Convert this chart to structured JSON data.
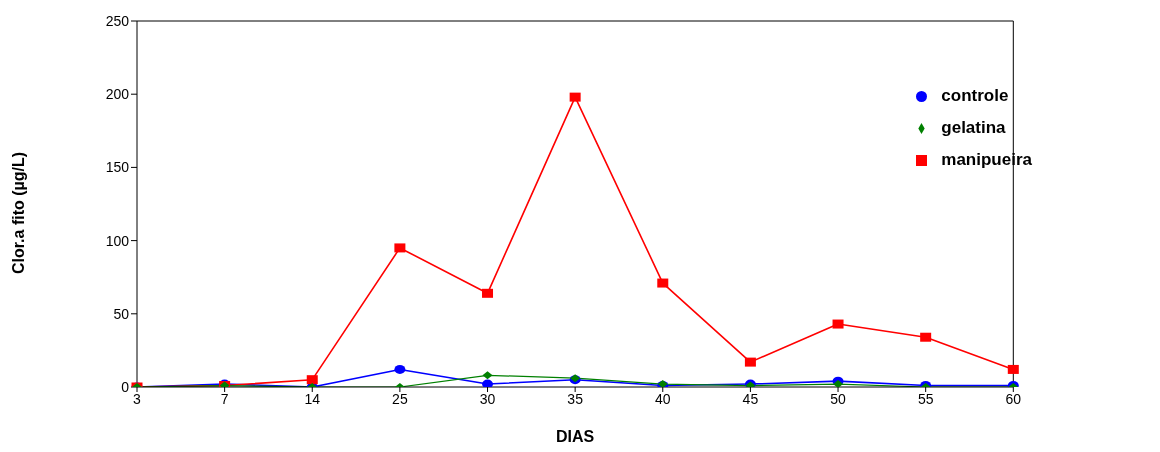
{
  "chart_data": {
    "type": "line",
    "xlabel": "DIAS",
    "ylabel": "Clor.a fito (µg/L)",
    "categories": [
      "3",
      "7",
      "14",
      "25",
      "30",
      "35",
      "40",
      "45",
      "50",
      "55",
      "60"
    ],
    "series": [
      {
        "name": "controle",
        "color": "#0000ff",
        "marker": "circle",
        "values": [
          0,
          2,
          0,
          12,
          2,
          5,
          1,
          2,
          4,
          1,
          1
        ]
      },
      {
        "name": "manipueira",
        "color": "#ff0000",
        "marker": "square",
        "values": [
          0,
          1,
          5,
          95,
          64,
          198,
          71,
          17,
          43,
          34,
          12
        ]
      },
      {
        "name": "gelatina",
        "color": "#008000",
        "marker": "diamond",
        "values": [
          0,
          1,
          0,
          0,
          8,
          6,
          2,
          1,
          2,
          0,
          0
        ]
      }
    ],
    "ylim": [
      0,
      250
    ],
    "yticks": [
      0,
      50,
      100,
      150,
      200,
      250
    ],
    "grid": false,
    "legend": "top right",
    "line_style": "solid"
  }
}
